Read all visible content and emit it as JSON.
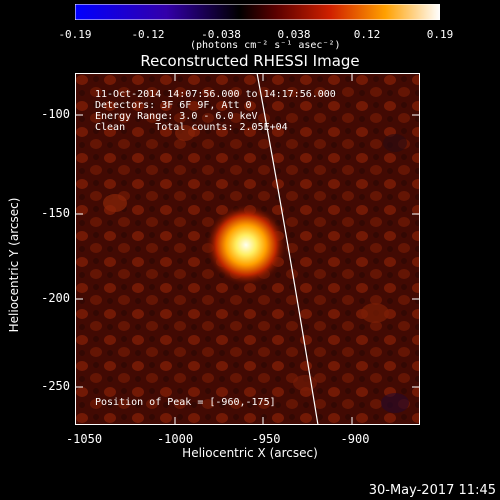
{
  "colorbar": {
    "ticks": [
      "-0.19",
      "-0.12",
      "-0.038",
      "0.038",
      "0.12",
      "0.19"
    ],
    "unit": "(photons cm⁻² s⁻¹ asec⁻²)"
  },
  "title": "Reconstructed RHESSI Image",
  "info": {
    "line1": "11-Oct-2014 14:07:56.000 to 14:17:56.000",
    "line2": "Detectors: 3F 6F 9F, Att 0",
    "line3": "Energy Range: 3.0 - 6.0 keV",
    "line4": "Clean     Total counts: 2.05E+04",
    "peak": "Position of Peak = [-960,-175]"
  },
  "axes": {
    "xlabel": "Heliocentric X (arcsec)",
    "ylabel": "Heliocentric Y (arcsec)",
    "xticks": [
      "-1050",
      "-1000",
      "-950",
      "-900"
    ],
    "yticks": [
      "-100",
      "-150",
      "-200",
      "-250"
    ]
  },
  "timestamp": "30-May-2017 11:45"
}
